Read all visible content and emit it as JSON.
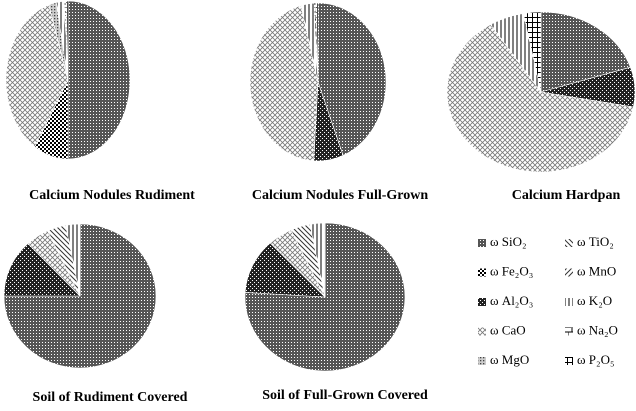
{
  "chart_data": [
    {
      "type": "pie",
      "title": "Calcium Nodules Rudiment",
      "categories": [
        "ω SiO₂",
        "ω Fe₂O₃",
        "ω Al₂O₃",
        "ω CaO",
        "ω MgO",
        "ω TiO₂",
        "ω MnO",
        "ω K₂O",
        "ω Na₂O",
        "ω P₂O₅"
      ],
      "values": [
        50,
        9,
        0,
        36,
        2,
        0,
        0,
        2,
        0.5,
        0.5
      ]
    },
    {
      "type": "pie",
      "title": "Calcium Nodules Full-Grown",
      "categories": [
        "ω SiO₂",
        "ω Fe₂O₃",
        "ω Al₂O₃",
        "ω CaO",
        "ω MgO",
        "ω TiO₂",
        "ω MnO",
        "ω K₂O",
        "ω Na₂O",
        "ω P₂O₅"
      ],
      "values": [
        44,
        0,
        7,
        45,
        0,
        0,
        0,
        3,
        0.5,
        0.5
      ]
    },
    {
      "type": "pie",
      "title": "Calcium Hardpan",
      "categories": [
        "ω SiO₂",
        "ω Fe₂O₃",
        "ω Al₂O₃",
        "ω CaO",
        "ω MgO",
        "ω TiO₂",
        "ω MnO",
        "ω K₂O",
        "ω Na₂O",
        "ω P₂O₅"
      ],
      "values": [
        20,
        0,
        8,
        63,
        0,
        0,
        0,
        6,
        0,
        3
      ]
    },
    {
      "type": "pie",
      "title": "Soil of Rudiment Covered",
      "categories": [
        "ω SiO₂",
        "ω Fe₂O₃",
        "ω Al₂O₃",
        "ω CaO",
        "ω MgO",
        "ω TiO₂",
        "ω MnO",
        "ω K₂O",
        "ω Na₂O",
        "ω P₂O₅"
      ],
      "values": [
        75,
        0,
        13,
        5,
        0,
        4,
        0,
        3,
        0,
        0
      ]
    },
    {
      "type": "pie",
      "title": "Soil of Full-Grown  Covered",
      "categories": [
        "ω SiO₂",
        "ω Fe₂O₃",
        "ω Al₂O₃",
        "ω CaO",
        "ω MgO",
        "ω TiO₂",
        "ω MnO",
        "ω K₂O",
        "ω Na₂O",
        "ω P₂O₅"
      ],
      "values": [
        76,
        0,
        12,
        5,
        0,
        4,
        0,
        3,
        0,
        0
      ]
    }
  ]
}
